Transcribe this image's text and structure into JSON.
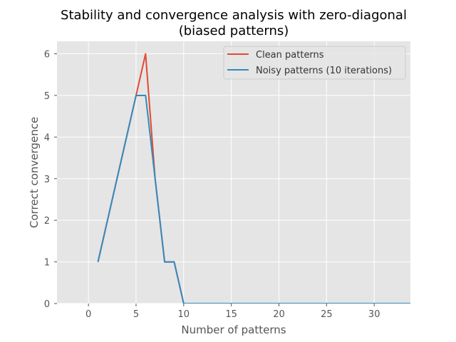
{
  "chart_data": {
    "type": "line",
    "title": [
      "Stability and convergence analysis with zero-diagonal",
      "(biased patterns)"
    ],
    "xlabel": "Number of patterns",
    "ylabel": "Correct convergence",
    "xlim": [
      -3.3,
      33.8
    ],
    "ylim": [
      0,
      6.3
    ],
    "xticks": [
      0,
      5,
      10,
      15,
      20,
      25,
      30
    ],
    "yticks": [
      0,
      1,
      2,
      3,
      4,
      5,
      6
    ],
    "grid": true,
    "legend_position": "top-right",
    "series": [
      {
        "name": "Clean patterns",
        "color": "#e24a33",
        "x": [
          1,
          2,
          3,
          4,
          5,
          6,
          7,
          8,
          9,
          10,
          11,
          12,
          13,
          14,
          15,
          16,
          17,
          18,
          19,
          20,
          21,
          22,
          23,
          24,
          25,
          26,
          27,
          28,
          29,
          30,
          31,
          32,
          33,
          34
        ],
        "y": [
          1,
          2,
          3,
          4,
          5,
          6,
          3,
          1,
          1,
          0,
          0,
          0,
          0,
          0,
          0,
          0,
          0,
          0,
          0,
          0,
          0,
          0,
          0,
          0,
          0,
          0,
          0,
          0,
          0,
          0,
          0,
          0,
          0,
          0
        ]
      },
      {
        "name": "Noisy patterns (10 iterations)",
        "color": "#348abd",
        "x": [
          1,
          2,
          3,
          4,
          5,
          6,
          7,
          8,
          9,
          10,
          11,
          12,
          13,
          14,
          15,
          16,
          17,
          18,
          19,
          20,
          21,
          22,
          23,
          24,
          25,
          26,
          27,
          28,
          29,
          30,
          31,
          32,
          33,
          34
        ],
        "y": [
          1,
          2,
          3,
          4,
          5,
          5,
          3,
          1,
          1,
          0,
          0,
          0,
          0,
          0,
          0,
          0,
          0,
          0,
          0,
          0,
          0,
          0,
          0,
          0,
          0,
          0,
          0,
          0,
          0,
          0,
          0,
          0,
          0,
          0
        ]
      }
    ]
  },
  "colors": {
    "plot_background": "#e5e5e5",
    "grid": "#ffffff",
    "text": "#555555"
  }
}
